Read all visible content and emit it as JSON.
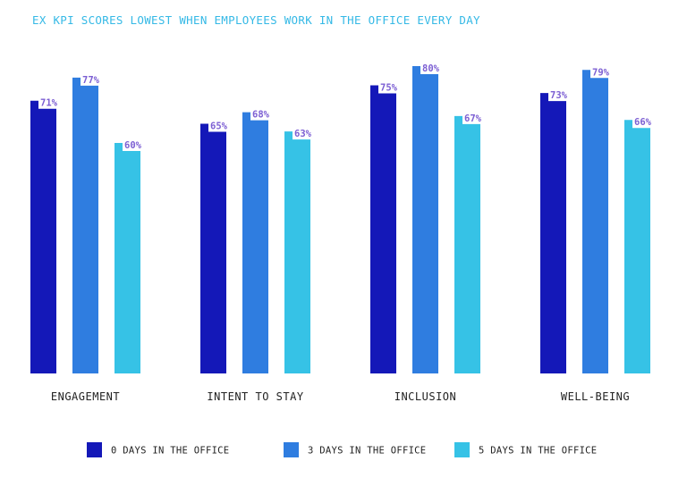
{
  "chart_data": {
    "type": "bar",
    "title": "EX KPI SCORES LOWEST WHEN EMPLOYEES WORK IN THE OFFICE EVERY DAY",
    "categories": [
      "ENGAGEMENT",
      "INTENT TO STAY",
      "INCLUSION",
      "WELL-BEING"
    ],
    "series": [
      {
        "name": "0 DAYS IN THE OFFICE",
        "color": "#1418b8",
        "values": [
          71,
          65,
          75,
          73
        ],
        "labels": [
          "71%",
          "65%",
          "75%",
          "73%"
        ]
      },
      {
        "name": "3 DAYS IN THE OFFICE",
        "color": "#2f7de0",
        "values": [
          77,
          68,
          80,
          79
        ],
        "labels": [
          "77%",
          "68%",
          "80%",
          "79%"
        ]
      },
      {
        "name": "5 DAYS IN THE OFFICE",
        "color": "#36c2e6",
        "values": [
          60,
          63,
          67,
          66
        ],
        "labels": [
          "60%",
          "63%",
          "67%",
          "66%"
        ]
      }
    ],
    "xlabel": "",
    "ylabel": "",
    "ylim": [
      0,
      80
    ],
    "grid": false,
    "legend_position": "bottom"
  }
}
